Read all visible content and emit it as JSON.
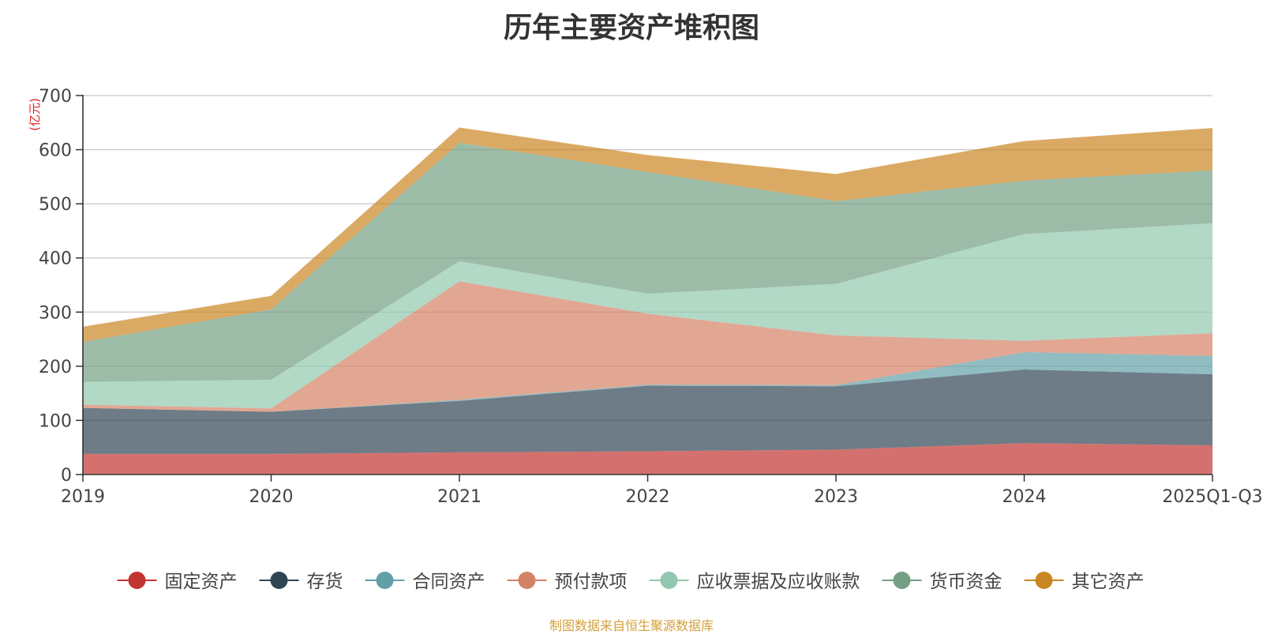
{
  "chart_data": {
    "type": "area",
    "stacked": true,
    "title": "历年主要资产堆积图",
    "unit_label": "(亿元)",
    "categories": [
      "2019",
      "2020",
      "2021",
      "2022",
      "2023",
      "2024",
      "2025Q1-Q3"
    ],
    "ylim": [
      0,
      700
    ],
    "yticks": [
      0,
      100,
      200,
      300,
      400,
      500,
      600,
      700
    ],
    "grid": true,
    "legend_position": "bottom",
    "series": [
      {
        "name": "固定资产",
        "color": "#c23531",
        "values": [
          38,
          38,
          41,
          43,
          46,
          58,
          54
        ]
      },
      {
        "name": "存货",
        "color": "#2f4554",
        "values": [
          85,
          78,
          95,
          121,
          117,
          136,
          131
        ]
      },
      {
        "name": "合同资产",
        "color": "#61a0a8",
        "values": [
          0,
          0,
          2,
          2,
          2,
          32,
          34
        ]
      },
      {
        "name": "预付款项",
        "color": "#d48265",
        "values": [
          6,
          6,
          219,
          131,
          92,
          21,
          42
        ]
      },
      {
        "name": "应收票据及应收账款",
        "color": "#91c7ae",
        "values": [
          42,
          53,
          37,
          37,
          95,
          197,
          203
        ]
      },
      {
        "name": "货币资金",
        "color": "#749f83",
        "values": [
          74,
          130,
          219,
          225,
          153,
          99,
          98
        ]
      },
      {
        "name": "其它资产",
        "color": "#ca8622",
        "values": [
          28,
          25,
          28,
          31,
          50,
          73,
          78
        ]
      }
    ]
  },
  "source_note": "制图数据来自恒生聚源数据库"
}
